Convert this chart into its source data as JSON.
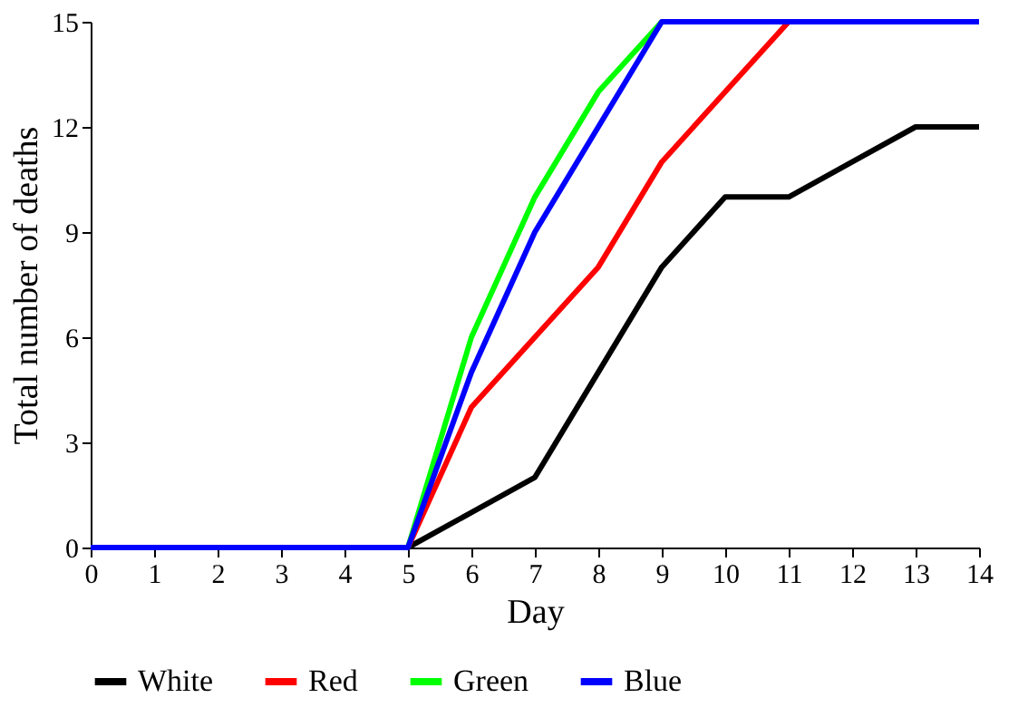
{
  "chart_data": {
    "type": "line",
    "xlabel": "Day",
    "ylabel": "Total number of deaths",
    "x": [
      0,
      1,
      2,
      3,
      4,
      5,
      6,
      7,
      8,
      9,
      10,
      11,
      12,
      13,
      14
    ],
    "series": [
      {
        "name": "White",
        "color": "#000000",
        "values": [
          null,
          null,
          null,
          null,
          null,
          0,
          1,
          2,
          5,
          8,
          10,
          10,
          11,
          12,
          12
        ]
      },
      {
        "name": "Red",
        "color": "#ff0000",
        "values": [
          null,
          null,
          null,
          null,
          null,
          0,
          4,
          6,
          8,
          11,
          13,
          15,
          null,
          null,
          null
        ]
      },
      {
        "name": "Green",
        "color": "#00ff00",
        "values": [
          null,
          null,
          null,
          null,
          null,
          0,
          6,
          10,
          13,
          15,
          null,
          null,
          null,
          null,
          null
        ]
      },
      {
        "name": "Blue",
        "color": "#0000ff",
        "values": [
          0,
          0,
          0,
          0,
          0,
          0,
          5,
          9,
          12,
          15,
          15,
          15,
          15,
          15,
          15
        ]
      }
    ],
    "xlim": [
      0,
      14
    ],
    "xticks": [
      0,
      1,
      2,
      3,
      4,
      5,
      6,
      7,
      8,
      9,
      10,
      11,
      12,
      13,
      14
    ],
    "ylim": [
      0,
      15
    ],
    "yticks": [
      0,
      3,
      6,
      9,
      12,
      15
    ],
    "grid": false,
    "legend": "bottom",
    "marker": "none",
    "line_style": "solid"
  }
}
